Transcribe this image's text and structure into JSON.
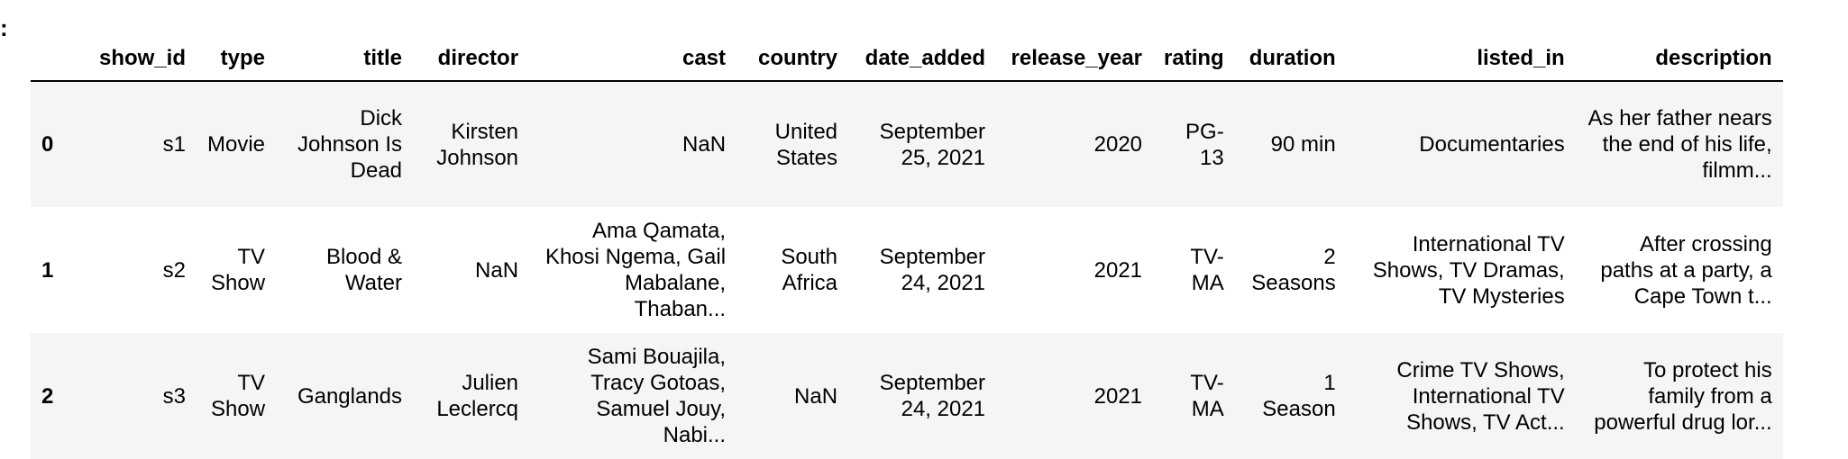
{
  "output_prompt_marker": ":",
  "table": {
    "columns": [
      "show_id",
      "type",
      "title",
      "director",
      "cast",
      "country",
      "date_added",
      "release_year",
      "rating",
      "duration",
      "listed_in",
      "description"
    ],
    "rows": [
      {
        "index": "0",
        "show_id": "s1",
        "type": "Movie",
        "title": "Dick Johnson Is Dead",
        "director": "Kirsten Johnson",
        "cast": "NaN",
        "country": "United States",
        "date_added": "September 25, 2021",
        "release_year": "2020",
        "rating": "PG-13",
        "duration": "90 min",
        "listed_in": "Documentaries",
        "description": "As her father nears the end of his life, filmm..."
      },
      {
        "index": "1",
        "show_id": "s2",
        "type": "TV Show",
        "title": "Blood & Water",
        "director": "NaN",
        "cast": "Ama Qamata, Khosi Ngema, Gail Mabalane, Thaban...",
        "country": "South Africa",
        "date_added": "September 24, 2021",
        "release_year": "2021",
        "rating": "TV-MA",
        "duration": "2 Seasons",
        "listed_in": "International TV Shows, TV Dramas, TV Mysteries",
        "description": "After crossing paths at a party, a Cape Town t..."
      },
      {
        "index": "2",
        "show_id": "s3",
        "type": "TV Show",
        "title": "Ganglands",
        "director": "Julien Leclercq",
        "cast": "Sami Bouajila, Tracy Gotoas, Samuel Jouy, Nabi...",
        "country": "NaN",
        "date_added": "September 24, 2021",
        "release_year": "2021",
        "rating": "TV-MA",
        "duration": "1 Season",
        "listed_in": "Crime TV Shows, International TV Shows, TV Act...",
        "description": "To protect his family from a powerful drug lor..."
      }
    ]
  }
}
